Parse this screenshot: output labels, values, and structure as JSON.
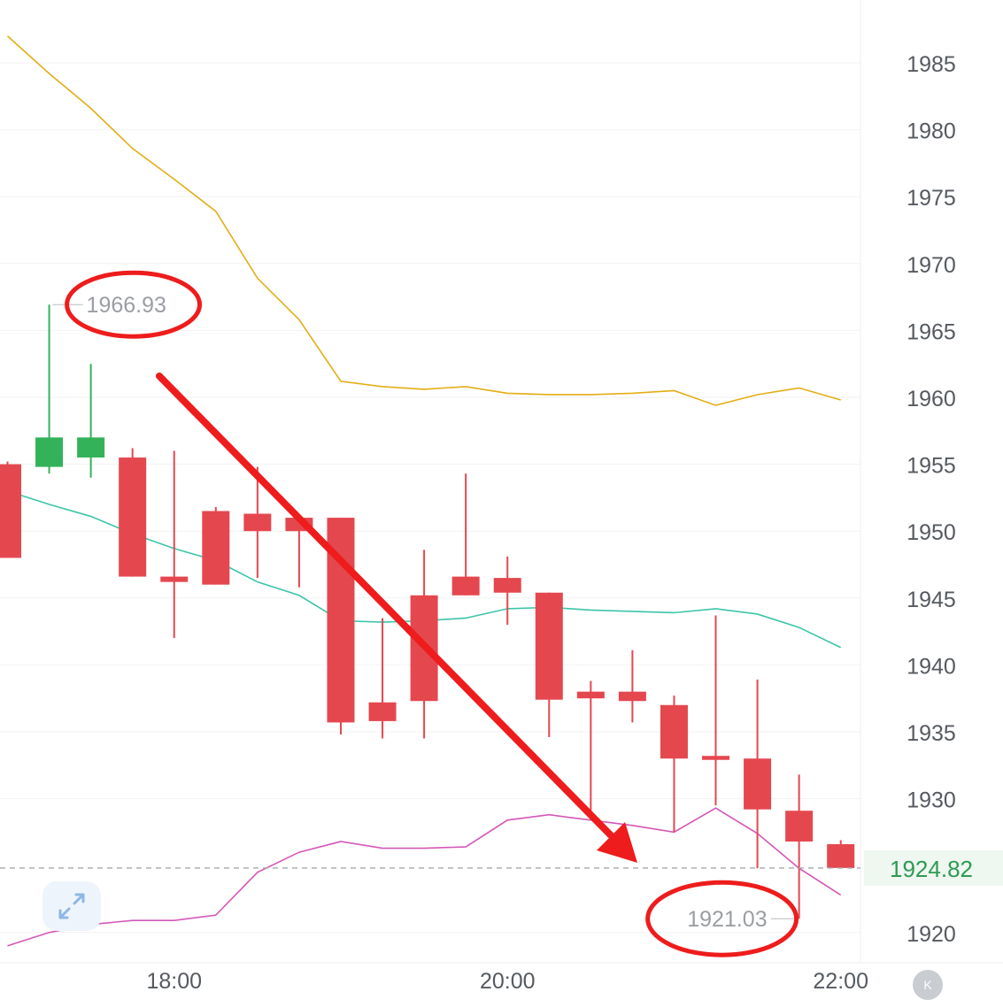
{
  "chart_data": {
    "type": "candlestick",
    "price_labels": [
      "1985",
      "1980",
      "1975",
      "1970",
      "1965",
      "1960",
      "1955",
      "1950",
      "1945",
      "1940",
      "1935",
      "1930",
      "1920"
    ],
    "price_levels": [
      1985,
      1980,
      1975,
      1970,
      1965,
      1960,
      1955,
      1950,
      1945,
      1940,
      1935,
      1930,
      1920
    ],
    "ylim": [
      1916.5,
      1989.5
    ],
    "time_labels": [
      "18:00",
      "20:00",
      "22:00"
    ],
    "time_label_index": [
      4,
      12,
      20
    ],
    "current_price": {
      "label": "1924.82",
      "value": 1924.82
    },
    "high_label": {
      "text": "1966.93",
      "value": 1966.93,
      "index": 1
    },
    "low_label": {
      "text": "1921.03",
      "value": 1921.03,
      "index": 19
    },
    "candles": [
      {
        "o": 1955.0,
        "h": 1955.2,
        "l": 1948.0,
        "c": 1948.0
      },
      {
        "o": 1954.8,
        "h": 1966.93,
        "l": 1954.3,
        "c": 1957.0
      },
      {
        "o": 1955.5,
        "h": 1962.5,
        "l": 1954.0,
        "c": 1957.0
      },
      {
        "o": 1955.5,
        "h": 1956.2,
        "l": 1946.6,
        "c": 1946.6
      },
      {
        "o": 1946.6,
        "h": 1956.0,
        "l": 1942.0,
        "c": 1946.2
      },
      {
        "o": 1951.5,
        "h": 1951.8,
        "l": 1946.0,
        "c": 1946.0
      },
      {
        "o": 1951.3,
        "h": 1954.8,
        "l": 1946.5,
        "c": 1950.0
      },
      {
        "o": 1951.0,
        "h": 1951.0,
        "l": 1945.8,
        "c": 1950.0
      },
      {
        "o": 1951.0,
        "h": 1951.0,
        "l": 1934.8,
        "c": 1935.7
      },
      {
        "o": 1937.2,
        "h": 1943.5,
        "l": 1934.5,
        "c": 1935.8
      },
      {
        "o": 1945.2,
        "h": 1948.6,
        "l": 1934.5,
        "c": 1937.3
      },
      {
        "o": 1946.6,
        "h": 1954.3,
        "l": 1945.2,
        "c": 1945.2
      },
      {
        "o": 1946.5,
        "h": 1948.1,
        "l": 1943.0,
        "c": 1945.4
      },
      {
        "o": 1945.4,
        "h": 1945.4,
        "l": 1934.6,
        "c": 1937.4
      },
      {
        "o": 1938.0,
        "h": 1938.8,
        "l": 1928.5,
        "c": 1937.5
      },
      {
        "o": 1938.0,
        "h": 1941.1,
        "l": 1935.7,
        "c": 1937.3
      },
      {
        "o": 1937.0,
        "h": 1937.7,
        "l": 1927.5,
        "c": 1933.0
      },
      {
        "o": 1933.2,
        "h": 1943.7,
        "l": 1929.5,
        "c": 1932.9
      },
      {
        "o": 1933.0,
        "h": 1938.9,
        "l": 1924.8,
        "c": 1929.2
      },
      {
        "o": 1929.1,
        "h": 1931.8,
        "l": 1921.03,
        "c": 1926.8
      },
      {
        "o": 1926.6,
        "h": 1926.9,
        "l": 1924.82,
        "c": 1924.82
      }
    ],
    "bands": {
      "upper": [
        1987.0,
        1984.2,
        1981.6,
        1978.6,
        1976.3,
        1973.9,
        1968.9,
        1965.8,
        1961.2,
        1960.8,
        1960.6,
        1960.8,
        1960.3,
        1960.2,
        1960.2,
        1960.3,
        1960.5,
        1959.4,
        1960.2,
        1960.7,
        1959.8
      ],
      "middle": [
        1953.0,
        1952.0,
        1951.1,
        1949.8,
        1948.7,
        1947.8,
        1946.2,
        1945.2,
        1943.3,
        1943.2,
        1943.3,
        1943.5,
        1944.2,
        1944.3,
        1944.1,
        1944.0,
        1943.9,
        1944.2,
        1943.8,
        1942.8,
        1941.3
      ],
      "lower": [
        1919.0,
        1920.0,
        1920.6,
        1920.9,
        1920.9,
        1921.3,
        1924.5,
        1926.0,
        1926.8,
        1926.3,
        1926.3,
        1926.4,
        1928.4,
        1928.8,
        1928.4,
        1928.0,
        1927.5,
        1929.3,
        1927.4,
        1924.8,
        1922.8
      ]
    },
    "colors": {
      "up": "#e5474f",
      "down": "#34b25a",
      "upper_band": "#e4ad14",
      "middle_band": "#3cc5a8",
      "lower_band": "#d457b8",
      "current_price": "#2e9b52",
      "annotation": "#ee1c1c"
    },
    "grid": true
  },
  "controls": {
    "zoom_icon": "expand-arrows-icon",
    "k_button_label": "K"
  }
}
